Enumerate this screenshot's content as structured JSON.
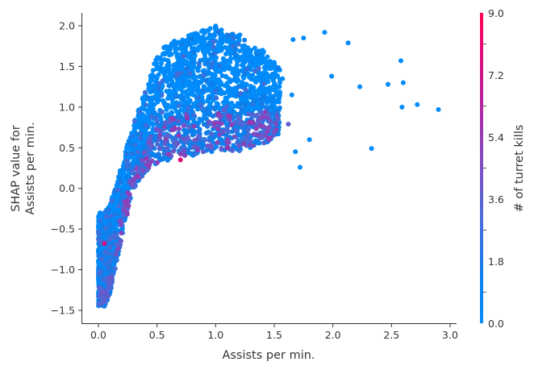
{
  "chart_data": {
    "type": "scatter",
    "title": "",
    "xlabel": "Assists per min.",
    "ylabel_lines": [
      "SHAP value for",
      "Assists per min."
    ],
    "xlim": [
      -0.12,
      3.05
    ],
    "ylim": [
      -1.63,
      2.16
    ],
    "xticks": [
      0.0,
      0.5,
      1.0,
      1.5,
      2.0,
      2.5,
      3.0
    ],
    "xtick_labels": [
      "0.0",
      "0.5",
      "1.0",
      "1.5",
      "2.0",
      "2.5",
      "3.0"
    ],
    "yticks": [
      -1.5,
      -1.0,
      -0.5,
      0.0,
      0.5,
      1.0,
      1.5,
      2.0
    ],
    "ytick_labels": [
      "−1.5",
      "−1.0",
      "−0.5",
      "0.0",
      "0.5",
      "1.0",
      "1.5",
      "2.0"
    ],
    "grid": false,
    "colorbar": {
      "label": "# of turret kills",
      "min": 0.0,
      "max": 9.0,
      "ticks": [
        0.0,
        1.8,
        3.6,
        5.4,
        7.2,
        9.0
      ],
      "tick_labels": [
        "0.0",
        "1.8",
        "3.6",
        "5.4",
        "7.2",
        "9.0"
      ],
      "colors": [
        "#008bfb",
        "#0f7de8",
        "#4a6bd8",
        "#7b4ec4",
        "#a72ba6",
        "#d10f83",
        "#ff0052"
      ]
    },
    "color_by": "# of turret kills",
    "dense_cloud_envelope": {
      "description": "Dense cloud of thousands of points; upper and lower SHAP bounds by x",
      "x": [
        0.0,
        0.05,
        0.1,
        0.2,
        0.3,
        0.4,
        0.5,
        0.6,
        0.7,
        0.8,
        0.9,
        1.0,
        1.1,
        1.2,
        1.3,
        1.4,
        1.5
      ],
      "upper": [
        -0.3,
        -0.3,
        -0.2,
        0.3,
        0.8,
        1.2,
        1.65,
        1.8,
        1.85,
        1.9,
        1.95,
        2.0,
        1.95,
        1.9,
        1.75,
        1.7,
        1.55
      ],
      "lower": [
        -1.45,
        -1.45,
        -1.3,
        -0.6,
        0.0,
        0.2,
        0.3,
        0.35,
        0.4,
        0.4,
        0.45,
        0.45,
        0.45,
        0.45,
        0.5,
        0.55,
        0.6
      ]
    },
    "outlier_points": [
      {
        "x": 1.93,
        "y": 1.92,
        "c": 0
      },
      {
        "x": 2.13,
        "y": 1.79,
        "c": 0
      },
      {
        "x": 2.58,
        "y": 1.57,
        "c": 0
      },
      {
        "x": 2.6,
        "y": 1.3,
        "c": 0
      },
      {
        "x": 2.47,
        "y": 1.28,
        "c": 0
      },
      {
        "x": 2.23,
        "y": 1.25,
        "c": 0
      },
      {
        "x": 1.99,
        "y": 1.38,
        "c": 0
      },
      {
        "x": 2.59,
        "y": 1.0,
        "c": 0
      },
      {
        "x": 2.72,
        "y": 1.03,
        "c": 0
      },
      {
        "x": 2.9,
        "y": 0.97,
        "c": 0
      },
      {
        "x": 2.33,
        "y": 0.49,
        "c": 0
      },
      {
        "x": 1.72,
        "y": 0.26,
        "c": 0
      },
      {
        "x": 1.8,
        "y": 0.6,
        "c": 0
      },
      {
        "x": 1.68,
        "y": 0.45,
        "c": 0
      },
      {
        "x": 1.75,
        "y": 1.85,
        "c": 0
      },
      {
        "x": 1.66,
        "y": 1.83,
        "c": 0
      },
      {
        "x": 1.57,
        "y": 1.35,
        "c": 0
      },
      {
        "x": 1.65,
        "y": 1.15,
        "c": 0
      },
      {
        "x": 1.5,
        "y": 1.55,
        "c": 0
      },
      {
        "x": 1.4,
        "y": 1.7,
        "c": 0
      },
      {
        "x": 1.62,
        "y": 0.79,
        "c": 3.6
      },
      {
        "x": 1.5,
        "y": 0.85,
        "c": 2.0
      },
      {
        "x": 1.38,
        "y": 0.62,
        "c": 3.6
      },
      {
        "x": 0.05,
        "y": -0.68,
        "c": 7.5
      },
      {
        "x": 0.7,
        "y": 0.35,
        "c": 8.0
      },
      {
        "x": 1.1,
        "y": 0.5,
        "c": 6.0
      }
    ]
  }
}
